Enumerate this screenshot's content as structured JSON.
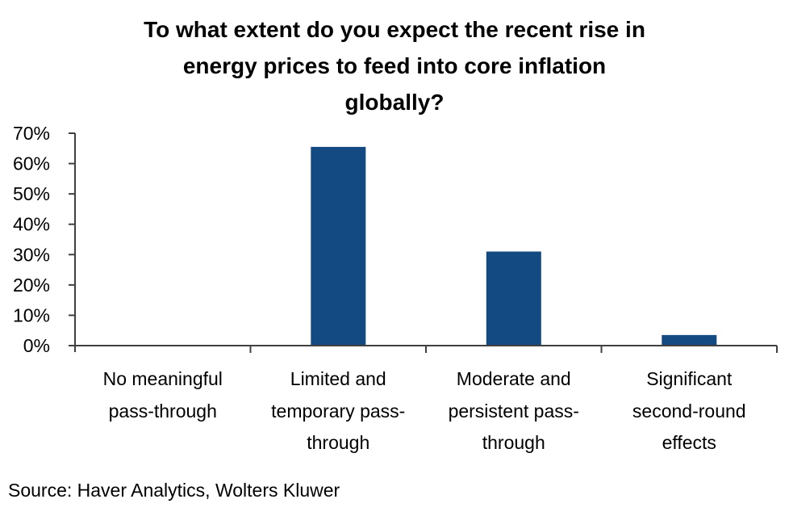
{
  "chart_data": {
    "type": "bar",
    "title_lines": [
      "To what extent do you expect the recent rise in",
      "energy prices to feed into core inflation",
      "globally?"
    ],
    "categories": [
      [
        "No meaningful",
        "pass-through"
      ],
      [
        "Limited and",
        "temporary pass-",
        "through"
      ],
      [
        "Moderate and",
        "persistent pass-",
        "through"
      ],
      [
        "Significant",
        "second-round",
        "effects"
      ]
    ],
    "values": [
      0,
      65.5,
      31,
      3.5
    ],
    "value_unit": "%",
    "ylim": [
      0,
      70
    ],
    "yticks": [
      0,
      10,
      20,
      30,
      40,
      50,
      60,
      70
    ],
    "ytick_labels": [
      "0%",
      "10%",
      "20%",
      "30%",
      "40%",
      "50%",
      "60%",
      "70%"
    ],
    "xlabel": "",
    "ylabel": "",
    "grid": false,
    "legend": "none",
    "bar_color": "#134a82",
    "axis_color": "#404040",
    "source": "Source: Haver Analytics, Wolters Kluwer"
  }
}
